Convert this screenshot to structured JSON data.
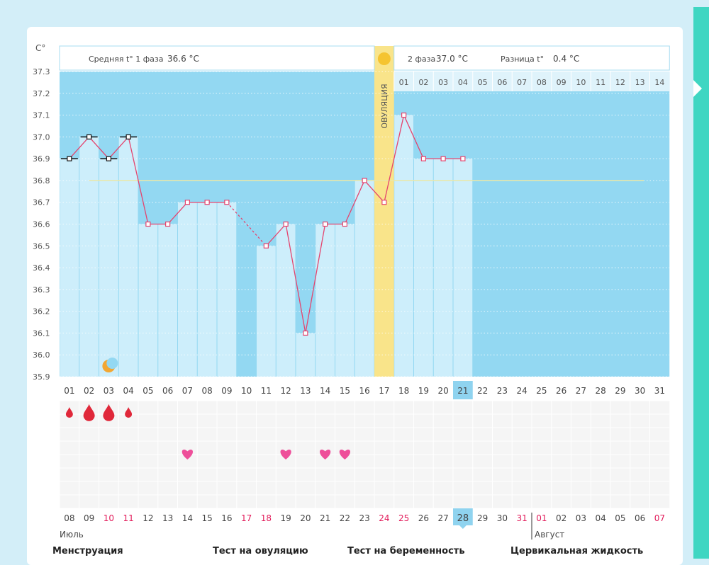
{
  "chart_data": {
    "type": "line",
    "unit_label": "C°",
    "y_ticks": [
      "37.3",
      "37.2",
      "37.1",
      "37.0",
      "36.9",
      "36.8",
      "36.7",
      "36.6",
      "36.5",
      "36.4",
      "36.3",
      "36.2",
      "36.1",
      "36.0",
      "35.9"
    ],
    "ylim": [
      35.9,
      37.3
    ],
    "cycle_days": [
      "01",
      "02",
      "03",
      "04",
      "05",
      "06",
      "07",
      "08",
      "09",
      "10",
      "11",
      "12",
      "13",
      "14",
      "15",
      "16",
      "17",
      "18",
      "19",
      "20",
      "21",
      "22",
      "23",
      "24",
      "25",
      "26",
      "27",
      "28",
      "29",
      "30",
      "31"
    ],
    "current_cycle_day": "21",
    "temperatures": [
      36.9,
      37.0,
      36.9,
      37.0,
      36.6,
      36.6,
      36.7,
      36.7,
      36.7,
      null,
      36.5,
      36.6,
      36.1,
      36.6,
      36.6,
      36.8,
      36.7,
      37.1,
      36.9,
      36.9,
      36.9
    ],
    "coverline": 36.8,
    "ovulation_day": 17,
    "ovulation_label": "ОВУЛЯЦИЯ",
    "phase1_label": "Средняя t° 1 фаза",
    "phase1_value": "36.6 °C",
    "phase2_label": "2 фаза",
    "phase2_value": "37.0 °C",
    "diff_label": "Разница t°",
    "diff_value": "0.4 °C",
    "phase2_days": [
      "01",
      "02",
      "03",
      "04",
      "05",
      "06",
      "07",
      "08",
      "09",
      "10",
      "11",
      "12",
      "13",
      "14"
    ],
    "moon_day": 3,
    "menstruation": [
      {
        "day": 1,
        "size": "small"
      },
      {
        "day": 2,
        "size": "large"
      },
      {
        "day": 3,
        "size": "large"
      },
      {
        "day": 4,
        "size": "small"
      }
    ],
    "hearts": [
      7,
      12,
      14,
      15
    ],
    "calendar_dates": [
      "08",
      "09",
      "10",
      "11",
      "12",
      "13",
      "14",
      "15",
      "16",
      "17",
      "18",
      "19",
      "20",
      "21",
      "22",
      "23",
      "24",
      "25",
      "26",
      "27",
      "28",
      "29",
      "30",
      "31",
      "01",
      "02",
      "03",
      "04",
      "05",
      "06",
      "07"
    ],
    "red_dates": [
      2,
      3,
      9,
      10,
      16,
      17,
      23,
      24,
      30
    ],
    "today_index": 20,
    "month_labels": [
      {
        "label": "Июль",
        "index": 0
      },
      {
        "label": "Август",
        "index": 24
      }
    ],
    "legend": [
      "Менструация",
      "Тест на овуляцию",
      "Тест на беременность",
      "Цервикальная жидкость"
    ]
  },
  "colors": {
    "chart_bg": "#93d8f2",
    "bar": "#cdeefb",
    "line": "#e5446e",
    "ovulation": "#f9e48a",
    "coverline": "#e9e7a8",
    "drop": "#e0283a",
    "heart": "#ee4f9a",
    "moon": "#f3a733",
    "today": "#8fd3ef",
    "red_text": "#e21b5a"
  }
}
